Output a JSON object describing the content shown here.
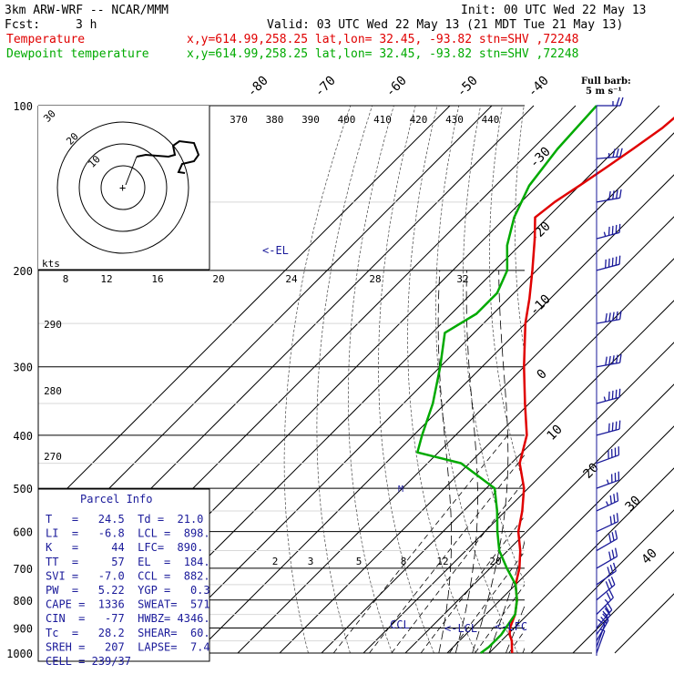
{
  "header": {
    "model": "3km ARW-WRF -- NCAR/MMM",
    "init": "Init: 00 UTC Wed 22 May 13",
    "fcst_label": "Fcst:",
    "fcst_value": "3 h",
    "valid": "Valid: 03 UTC Wed 22 May 13 (21 MDT Tue 21 May 13)",
    "temp_line": {
      "name": "Temperature",
      "info": "x,y=614.99,258.25   lat,lon= 32.45, -93.82  stn=SHV ,72248",
      "color": "#e00000"
    },
    "dew_line": {
      "name": "Dewpoint temperature",
      "info": "x,y=614.99,258.25   lat,lon= 32.45, -93.82  stn=SHV ,72248",
      "color": "#00aa00"
    },
    "barb_note_1": "Full barb:",
    "barb_note_2": "5 m s⁻¹"
  },
  "parcel": {
    "title": "Parcel Info",
    "rows": [
      "T   =   24.5  Td =  21.0",
      "LI  =   -6.8  LCL =  898.",
      "K   =     44  LFC=  890.",
      "TT  =     57  EL  =  184.",
      "SVI =   -7.0  CCL =  882.",
      "PW  =   5.22  YGP =   0.3",
      "CAPE =  1336  SWEAT=  571",
      "CIN  =   -77  HWBZ= 4346.",
      "Tc  =   28.2  SHEAR=  60.",
      "SREH =   207  LAPSE=  7.4",
      "CELL = 239/37"
    ]
  },
  "annotations": {
    "el": "<-EL",
    "ccl": "CCL",
    "lcl": "LCL",
    "lfc": "LFC",
    "kts": "kts"
  },
  "chart_data": {
    "type": "line",
    "diagram": "skew-T log-p",
    "pressure_levels_hpa": [
      100,
      200,
      300,
      400,
      500,
      600,
      700,
      800,
      900,
      1000
    ],
    "isotherm_labels_c": [
      -80,
      -70,
      -60,
      -50,
      -40,
      -30,
      -20,
      -10,
      0,
      10,
      20,
      30,
      40
    ],
    "theta_labels_top_k": [
      370,
      380,
      390,
      400,
      410,
      420,
      430,
      440
    ],
    "theta_labels_left_k": [
      290,
      280,
      270
    ],
    "mixing_ratio_labels": [
      2,
      3,
      5,
      8,
      12,
      20
    ],
    "hodograph_ring_labels": [
      8,
      12,
      16,
      20,
      24,
      28,
      32
    ],
    "hodograph_ring_values": [
      10,
      20,
      30
    ],
    "series": [
      {
        "name": "Temperature",
        "color": "#e00000",
        "points": [
          [
            1000,
            25.5
          ],
          [
            975,
            24
          ],
          [
            950,
            22.5
          ],
          [
            925,
            20.5
          ],
          [
            900,
            19
          ],
          [
            875,
            18
          ],
          [
            850,
            17
          ],
          [
            800,
            14
          ],
          [
            750,
            10
          ],
          [
            700,
            7
          ],
          [
            650,
            3
          ],
          [
            600,
            -2
          ],
          [
            550,
            -6
          ],
          [
            500,
            -11
          ],
          [
            450,
            -18
          ],
          [
            400,
            -23
          ],
          [
            350,
            -31
          ],
          [
            300,
            -40
          ],
          [
            250,
            -50
          ],
          [
            225,
            -55
          ],
          [
            200,
            -61
          ],
          [
            175,
            -68
          ],
          [
            160,
            -73
          ],
          [
            150,
            -72
          ],
          [
            140,
            -70
          ],
          [
            130,
            -68
          ],
          [
            120,
            -66
          ],
          [
            110,
            -64
          ],
          [
            100,
            -63
          ]
        ]
      },
      {
        "name": "Dewpoint temperature",
        "color": "#00aa00",
        "points": [
          [
            1000,
            18
          ],
          [
            975,
            18.5
          ],
          [
            950,
            18.5
          ],
          [
            925,
            18.5
          ],
          [
            900,
            18
          ],
          [
            850,
            17
          ],
          [
            800,
            14
          ],
          [
            750,
            10
          ],
          [
            700,
            4
          ],
          [
            650,
            -2
          ],
          [
            600,
            -7
          ],
          [
            550,
            -12
          ],
          [
            500,
            -18
          ],
          [
            450,
            -32
          ],
          [
            430,
            -45
          ],
          [
            400,
            -48
          ],
          [
            350,
            -53
          ],
          [
            300,
            -60
          ],
          [
            260,
            -67
          ],
          [
            240,
            -64
          ],
          [
            220,
            -64
          ],
          [
            200,
            -67
          ],
          [
            180,
            -73
          ],
          [
            160,
            -78
          ],
          [
            140,
            -82
          ],
          [
            120,
            -84
          ],
          [
            100,
            -85
          ]
        ]
      }
    ],
    "wind_barbs": [
      {
        "p": 1000,
        "spd_ms": 4,
        "dir": 200
      },
      {
        "p": 975,
        "spd_ms": 7,
        "dir": 200
      },
      {
        "p": 950,
        "spd_ms": 10,
        "dir": 210
      },
      {
        "p": 925,
        "spd_ms": 12,
        "dir": 215
      },
      {
        "p": 900,
        "spd_ms": 13,
        "dir": 220
      },
      {
        "p": 850,
        "spd_ms": 14,
        "dir": 225
      },
      {
        "p": 800,
        "spd_ms": 15,
        "dir": 230
      },
      {
        "p": 750,
        "spd_ms": 15,
        "dir": 235
      },
      {
        "p": 700,
        "spd_ms": 16,
        "dir": 240
      },
      {
        "p": 650,
        "spd_ms": 16,
        "dir": 240
      },
      {
        "p": 600,
        "spd_ms": 17,
        "dir": 245
      },
      {
        "p": 550,
        "spd_ms": 18,
        "dir": 245
      },
      {
        "p": 500,
        "spd_ms": 19,
        "dir": 250
      },
      {
        "p": 450,
        "spd_ms": 20,
        "dir": 250
      },
      {
        "p": 400,
        "spd_ms": 22,
        "dir": 255
      },
      {
        "p": 350,
        "spd_ms": 24,
        "dir": 255
      },
      {
        "p": 300,
        "spd_ms": 25,
        "dir": 260
      },
      {
        "p": 250,
        "spd_ms": 27,
        "dir": 260
      },
      {
        "p": 200,
        "spd_ms": 26,
        "dir": 255
      },
      {
        "p": 175,
        "spd_ms": 24,
        "dir": 255
      },
      {
        "p": 150,
        "spd_ms": 22,
        "dir": 260
      },
      {
        "p": 125,
        "spd_ms": 18,
        "dir": 265
      },
      {
        "p": 100,
        "spd_ms": 14,
        "dir": 270
      }
    ]
  }
}
